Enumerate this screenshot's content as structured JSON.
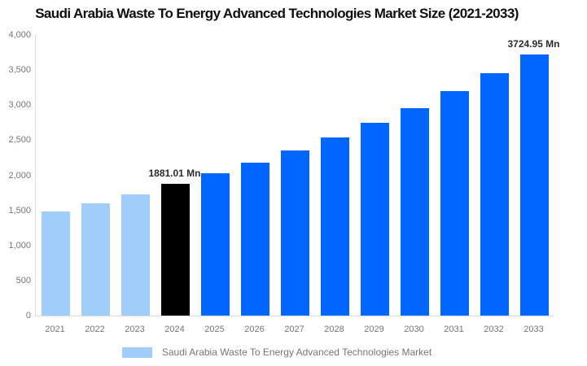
{
  "header": {
    "title": "Saudi Arabia Waste To Energy Advanced Technologies Market Size (2021-2033)"
  },
  "chart_data": {
    "type": "bar",
    "title": "Saudi Arabia Waste To Energy Advanced Technologies Market Size (2021-2033)",
    "categories": [
      "2021",
      "2022",
      "2023",
      "2024",
      "2025",
      "2026",
      "2027",
      "2028",
      "2029",
      "2030",
      "2031",
      "2032",
      "2033"
    ],
    "values": [
      1480,
      1600,
      1730,
      1881.01,
      2030,
      2185,
      2360,
      2540,
      2745,
      2960,
      3200,
      3455,
      3724.95
    ],
    "unit": "Mn",
    "xlabel": "",
    "ylabel": "",
    "ylim": [
      0,
      4000
    ],
    "ytick_interval": 500,
    "ytick_labels": [
      "0",
      "500",
      "1,000",
      "1,500",
      "2,000",
      "2,500",
      "3,000",
      "3,500",
      "4,000"
    ],
    "grid": "off",
    "legend_position": "bottom",
    "bar_colors": [
      "#A1CDFB",
      "#A1CDFB",
      "#A1CDFB",
      "#000000",
      "#0166FE",
      "#0166FE",
      "#0166FE",
      "#0166FE",
      "#0166FE",
      "#0166FE",
      "#0166FE",
      "#0166FE",
      "#0166FE"
    ],
    "data_labels": [
      {
        "category": "2024",
        "text": "1881.01 Mn"
      },
      {
        "category": "2033",
        "text": "3724.95 Mn"
      }
    ],
    "legend": {
      "label": "Saudi Arabia Waste To Energy Advanced Technologies Market",
      "swatch_color": "#A1CDFB"
    }
  },
  "colors": {
    "axis_line": "#D9D9D9",
    "tick_text": "#757575",
    "value_label_text": "#2B2B2B",
    "title_text": "#0F0F0F"
  }
}
